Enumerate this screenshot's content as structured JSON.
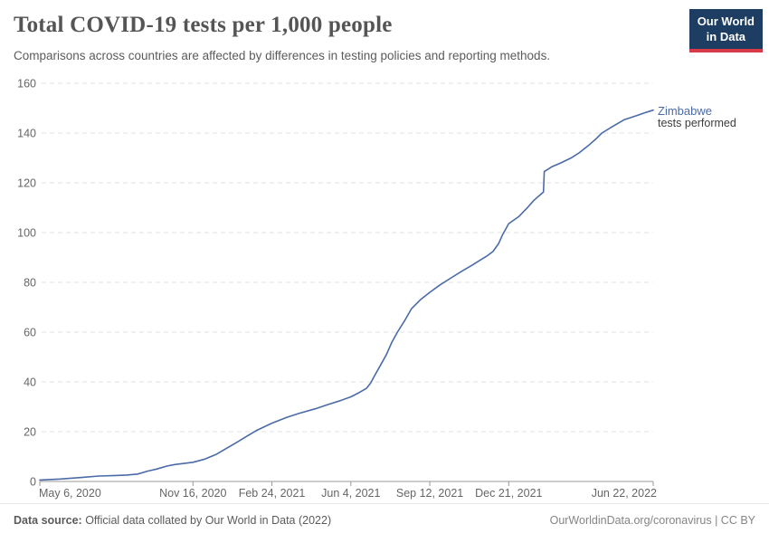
{
  "header": {
    "title": "Total COVID-19 tests per 1,000 people",
    "subtitle": "Comparisons across countries are affected by differences in testing policies and reporting methods.",
    "logo": {
      "line1": "Our World",
      "line2": "in Data"
    }
  },
  "series_label": {
    "name": "Zimbabwe",
    "sub": "tests performed"
  },
  "footer": {
    "source_label": "Data source:",
    "source_text": " Official data collated by Our World in Data (2022)",
    "right_text": "OurWorldinData.org/coronavirus | CC BY"
  },
  "colors": {
    "line": "#4a6ba8",
    "entity_label": "#4a6ba8",
    "logo_bg": "#1d3d63",
    "logo_accent": "#d73a49",
    "grid": "#e2e2e2",
    "axis": "#999999",
    "tick_text": "#666666"
  },
  "chart_data": {
    "type": "line",
    "title": "Total COVID-19 tests per 1,000 people",
    "subtitle": "Comparisons across countries are affected by differences in testing policies and reporting methods.",
    "xlabel": "",
    "ylabel": "",
    "grid": "dashed-horizontal",
    "legend_position": "end-of-line-label",
    "ylim": [
      0,
      160
    ],
    "x_range": [
      "2020-05-06",
      "2022-06-22"
    ],
    "y_ticks": [
      {
        "label": "0",
        "value": 0
      },
      {
        "label": "20",
        "value": 20
      },
      {
        "label": "40",
        "value": 40
      },
      {
        "label": "60",
        "value": 60
      },
      {
        "label": "80",
        "value": 80
      },
      {
        "label": "100",
        "value": 100
      },
      {
        "label": "120",
        "value": 120
      },
      {
        "label": "140",
        "value": 140
      },
      {
        "label": "160",
        "value": 160
      }
    ],
    "x_ticks": [
      {
        "label": "May 6, 2020",
        "date": "2020-05-06"
      },
      {
        "label": "Nov 16, 2020",
        "date": "2020-11-16"
      },
      {
        "label": "Feb 24, 2021",
        "date": "2021-02-24"
      },
      {
        "label": "Jun 4, 2021",
        "date": "2021-06-04"
      },
      {
        "label": "Sep 12, 2021",
        "date": "2021-09-12"
      },
      {
        "label": "Dec 21, 2021",
        "date": "2021-12-21"
      },
      {
        "label": "Jun 22, 2022",
        "date": "2022-06-22"
      }
    ],
    "series": [
      {
        "name": "Zimbabwe",
        "label_sub": "tests performed",
        "points": [
          [
            "2020-05-06",
            0.6
          ],
          [
            "2020-06-01",
            1.0
          ],
          [
            "2020-06-28",
            1.6
          ],
          [
            "2020-07-20",
            2.2
          ],
          [
            "2020-08-10",
            2.4
          ],
          [
            "2020-08-24",
            2.6
          ],
          [
            "2020-09-07",
            3.0
          ],
          [
            "2020-09-20",
            4.2
          ],
          [
            "2020-10-01",
            5.0
          ],
          [
            "2020-10-14",
            6.2
          ],
          [
            "2020-10-24",
            6.8
          ],
          [
            "2020-11-16",
            7.7
          ],
          [
            "2020-12-01",
            9.0
          ],
          [
            "2020-12-15",
            10.8
          ],
          [
            "2020-12-28",
            13.2
          ],
          [
            "2021-01-11",
            15.8
          ],
          [
            "2021-01-25",
            18.5
          ],
          [
            "2021-02-04",
            20.4
          ],
          [
            "2021-02-24",
            23.4
          ],
          [
            "2021-03-15",
            25.8
          ],
          [
            "2021-03-30",
            27.3
          ],
          [
            "2021-04-20",
            29.2
          ],
          [
            "2021-05-06",
            30.9
          ],
          [
            "2021-05-20",
            32.3
          ],
          [
            "2021-06-04",
            34.0
          ],
          [
            "2021-06-15",
            35.8
          ],
          [
            "2021-06-24",
            37.5
          ],
          [
            "2021-06-29",
            39.5
          ],
          [
            "2021-07-05",
            43.0
          ],
          [
            "2021-07-12",
            47.0
          ],
          [
            "2021-07-19",
            51.0
          ],
          [
            "2021-07-26",
            56.0
          ],
          [
            "2021-08-02",
            60.0
          ],
          [
            "2021-08-11",
            64.5
          ],
          [
            "2021-08-20",
            69.5
          ],
          [
            "2021-08-31",
            73.0
          ],
          [
            "2021-09-12",
            76.0
          ],
          [
            "2021-09-25",
            79.0
          ],
          [
            "2021-10-10",
            82.0
          ],
          [
            "2021-10-22",
            84.4
          ],
          [
            "2021-11-05",
            87.0
          ],
          [
            "2021-11-15",
            89.0
          ],
          [
            "2021-11-23",
            90.5
          ],
          [
            "2021-12-01",
            92.4
          ],
          [
            "2021-12-08",
            95.5
          ],
          [
            "2021-12-13",
            99.0
          ],
          [
            "2021-12-21",
            103.6
          ],
          [
            "2022-01-03",
            106.5
          ],
          [
            "2022-01-13",
            109.8
          ],
          [
            "2022-01-22",
            113.0
          ],
          [
            "2022-02-01",
            115.8
          ],
          [
            "2022-02-03",
            116.3
          ],
          [
            "2022-02-04",
            124.5
          ],
          [
            "2022-02-14",
            126.5
          ],
          [
            "2022-02-25",
            128.0
          ],
          [
            "2022-03-10",
            130.0
          ],
          [
            "2022-03-20",
            132.0
          ],
          [
            "2022-04-01",
            135.0
          ],
          [
            "2022-04-10",
            137.5
          ],
          [
            "2022-04-18",
            140.0
          ],
          [
            "2022-05-01",
            142.5
          ],
          [
            "2022-05-16",
            145.3
          ],
          [
            "2022-06-01",
            147.0
          ],
          [
            "2022-06-10",
            148.0
          ],
          [
            "2022-06-22",
            149.2
          ]
        ]
      }
    ]
  }
}
